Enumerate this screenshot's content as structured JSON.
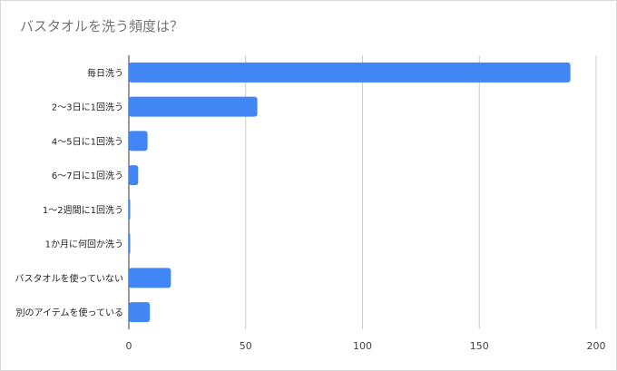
{
  "chart_data": {
    "type": "bar",
    "orientation": "horizontal",
    "title": "バスタオルを洗う頻度は？",
    "xlabel": "",
    "ylabel": "",
    "categories": [
      "毎日洗う",
      "2〜3日に1回洗う",
      "4〜5日に1回洗う",
      "6〜7日に1回洗う",
      "1〜2週間に1回洗う",
      "1か月に何回か洗う",
      "バスタオルを使っていない",
      "別のアイテムを使っている"
    ],
    "values": [
      189,
      55,
      8,
      4,
      0.5,
      0.5,
      18,
      9
    ],
    "xlim": [
      0,
      200
    ],
    "xticks": [
      0,
      50,
      100,
      150,
      200
    ],
    "grid": true,
    "legend": "none",
    "bar_color": "#4285f4"
  }
}
